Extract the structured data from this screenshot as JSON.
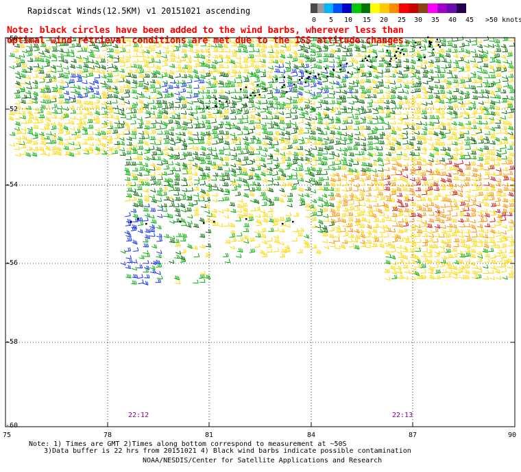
{
  "title": "Rapidscat Winds(12.5KM) v1 20151021 ascending",
  "note_line1": "Note: black circles have been added to the wind barbs, wherever less than",
  "note_line2": "optimal wind retrieval conditions are met due to the ISS attitude changes.",
  "scale": {
    "labels": [
      "0",
      "5",
      "10",
      "15",
      "20",
      "25",
      "30",
      "35",
      "40",
      "45",
      ">50 knots"
    ],
    "colors": [
      "#4a4a4a",
      "#9a9a9a",
      "#00b4ff",
      "#0064ff",
      "#00c800",
      "#ffe000",
      "#ffa000",
      "#ff3000",
      "#b01010",
      "#c8642a",
      "#a000a0",
      "#ff00ff",
      "#202080"
    ]
  },
  "map": {
    "y_labels": [
      "-50",
      "-52",
      "-54",
      "-56",
      "-58",
      "-60"
    ],
    "x_labels": [
      "75",
      "78",
      "81",
      "84",
      "87",
      "90"
    ],
    "times": [
      "22:12",
      "22:13"
    ]
  },
  "footer": {
    "line1": "Note: 1) Times are GMT 2)Times along bottom correspond to measurement at ~50S",
    "line2": "3)Data buffer is 22 hrs from 20151021 4) Black wind barbs indicate possible contamination",
    "line3": "NOAA/NESDIS/Center for Satellite Applications and Research"
  }
}
